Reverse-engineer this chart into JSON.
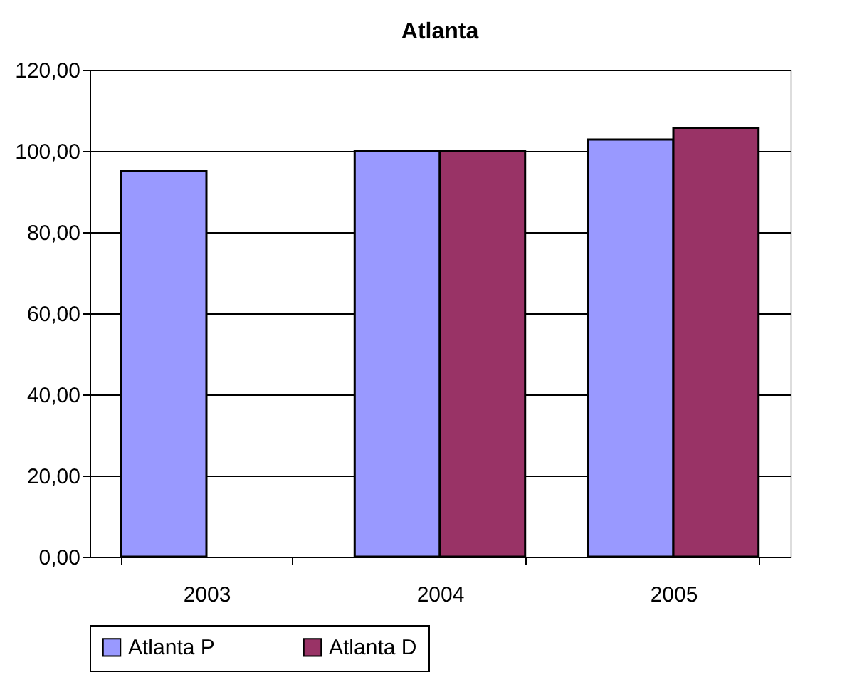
{
  "chart_data": {
    "type": "bar",
    "title": "Atlanta",
    "categories": [
      "2003",
      "2004",
      "2005"
    ],
    "series": [
      {
        "name": "Atlanta P",
        "color": "#9999ff",
        "values": [
          95,
          100,
          102.8
        ]
      },
      {
        "name": "Atlanta D",
        "color": "#993366",
        "values": [
          null,
          100,
          105.7
        ]
      }
    ],
    "ylim": [
      0,
      120
    ],
    "yticks": [
      {
        "value": 0,
        "label": "0,00"
      },
      {
        "value": 20,
        "label": "20,00"
      },
      {
        "value": 40,
        "label": "40,00"
      },
      {
        "value": 60,
        "label": "60,00"
      },
      {
        "value": 80,
        "label": "80,00"
      },
      {
        "value": 100,
        "label": "100,00"
      },
      {
        "value": 120,
        "label": "120,00"
      }
    ],
    "grid": "y",
    "legend": "bottom"
  }
}
